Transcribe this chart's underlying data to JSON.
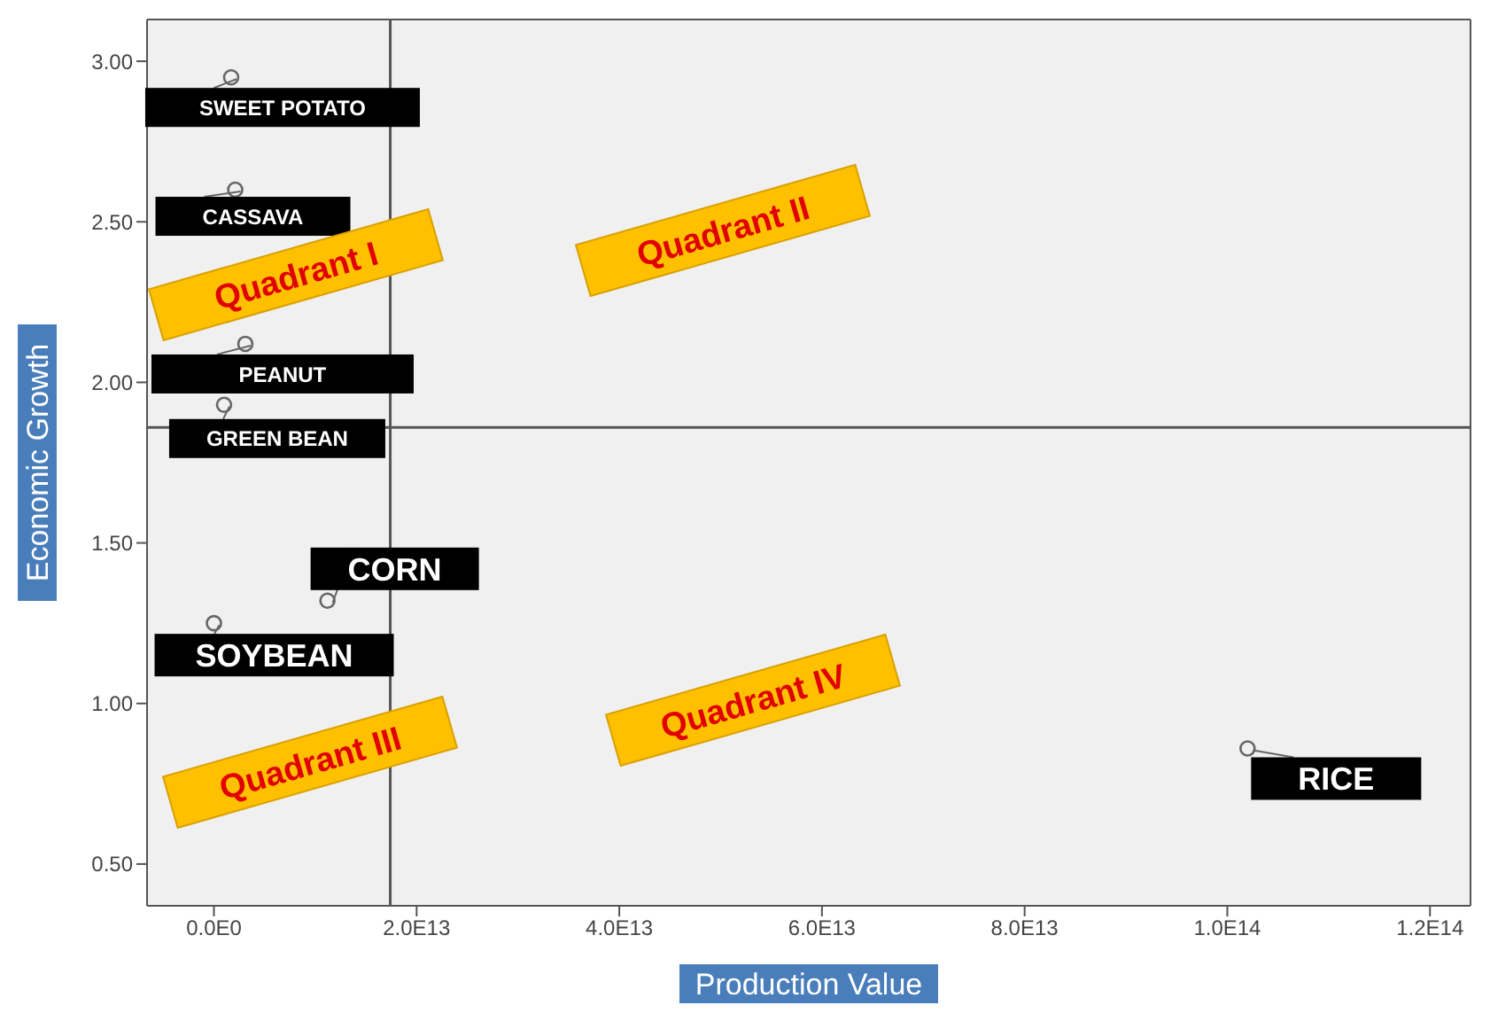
{
  "chart_data": {
    "type": "scatter",
    "xlabel": "Production Value",
    "ylabel": "Economic Growth",
    "x": [
      1700000000000.0,
      2100000000000.0,
      3100000000000.0,
      1000000000000.0,
      11200000000000.0,
      0,
      102000000000000.0
    ],
    "values": [
      2.95,
      2.6,
      2.12,
      1.93,
      1.32,
      1.25,
      0.86
    ],
    "color": "#666666",
    "marker": "circle",
    "grid": false,
    "legend": false,
    "xlim": [
      -6600000000000.0,
      124000000000000.0
    ],
    "xticks": [
      {
        "value": 0,
        "label": "0.0E0"
      },
      {
        "value": 20000000000000.0,
        "label": "2.0E13"
      },
      {
        "value": 40000000000000.0,
        "label": "4.0E13"
      },
      {
        "value": 60000000000000.0,
        "label": "6.0E13"
      },
      {
        "value": 80000000000000.0,
        "label": "8.0E13"
      },
      {
        "value": 100000000000000.0,
        "label": "1.0E14"
      },
      {
        "value": 120000000000000.0,
        "label": "1.2E14"
      }
    ],
    "ylim": [
      0.37,
      3.13
    ],
    "yticks": [
      {
        "value": 0.5,
        "label": "0.50"
      },
      {
        "value": 1,
        "label": "1.00"
      },
      {
        "value": 1.5,
        "label": "1.50"
      },
      {
        "value": 2,
        "label": "2.00"
      },
      {
        "value": 2.5,
        "label": "2.50"
      },
      {
        "value": 3,
        "label": "3.00"
      }
    ],
    "ref_lines": [
      {
        "axis": "x",
        "value": 17400000000000.0,
        "color": "#555555"
      },
      {
        "axis": "y",
        "value": 1.86,
        "color": "#555555"
      }
    ],
    "annotations": [
      {
        "text": "SWEET POTATO",
        "x": 1700000000000.0,
        "y": 2.95
      },
      {
        "text": "CASSAVA",
        "x": 2100000000000.0,
        "y": 2.6
      },
      {
        "text": "PEANUT",
        "x": 3100000000000.0,
        "y": 2.12
      },
      {
        "text": "GREEN BEAN",
        "x": 1000000000000.0,
        "y": 1.93
      },
      {
        "text": "CORN",
        "x": 11200000000000.0,
        "y": 1.32
      },
      {
        "text": "SOYBEAN",
        "x": 0,
        "y": 1.25
      },
      {
        "text": "RICE",
        "x": 102000000000000.0,
        "y": 0.86
      },
      "Quadrant I",
      "Quadrant II",
      "Quadrant III",
      "Quadrant IV"
    ]
  }
}
